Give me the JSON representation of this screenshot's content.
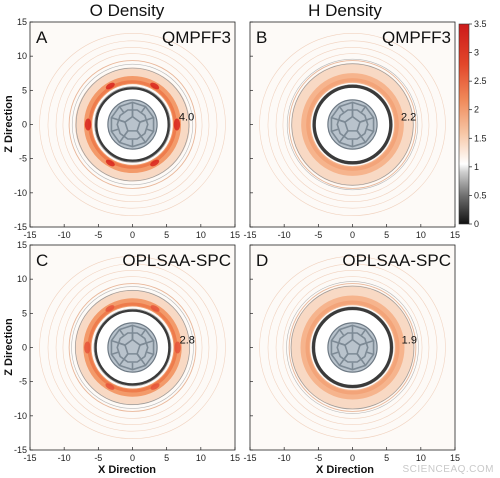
{
  "columns": [
    {
      "title": "O Density"
    },
    {
      "title": "H Density"
    }
  ],
  "panels": [
    {
      "letter": "A",
      "method": "QMPFF3",
      "peak_label": "4.0",
      "peak": 4.0,
      "shell_radius": 6.5,
      "inner_radius": 5.3
    },
    {
      "letter": "B",
      "method": "QMPFF3",
      "peak_label": "2.2",
      "peak": 2.2,
      "shell_radius": 6.8,
      "inner_radius": 5.6
    },
    {
      "letter": "C",
      "method": "OPLSAA-SPC",
      "peak_label": "2.8",
      "peak": 2.8,
      "shell_radius": 6.6,
      "inner_radius": 5.4
    },
    {
      "letter": "D",
      "method": "OPLSAA-SPC",
      "peak_label": "1.9",
      "peak": 1.9,
      "shell_radius": 6.9,
      "inner_radius": 5.7
    }
  ],
  "axes": {
    "xlabel": "X Direction",
    "ylabel": "Z Direction",
    "xlim": [
      -15,
      15
    ],
    "ylim": [
      -15,
      15
    ],
    "ticks": [
      -15,
      -10,
      -5,
      0,
      5,
      10,
      15
    ],
    "tick_labels": [
      "-15",
      "-10",
      "-5",
      "0",
      "5",
      "10",
      "15"
    ]
  },
  "colorbar": {
    "min": 0,
    "max": 3.5,
    "ticks": [
      0,
      0.5,
      1,
      1.5,
      2,
      2.5,
      3,
      3.5
    ],
    "tick_labels": [
      "0",
      "0.5",
      "1",
      "1.5",
      "2",
      "2.5",
      "3",
      "3.5"
    ],
    "colors": [
      "#111111",
      "#6e6e6e",
      "#cfcfcf",
      "#ffffff",
      "#f7c8a8",
      "#f08a5a",
      "#e2462a",
      "#cc1a1a"
    ]
  },
  "chart_data": {
    "type": "heatmap",
    "description_series": "radial water density around a fullerene",
    "panels": [
      {
        "letter": "A",
        "column": "O Density",
        "method": "QMPFF3",
        "peak_value": 4.0
      },
      {
        "letter": "B",
        "column": "H Density",
        "method": "QMPFF3",
        "peak_value": 2.2
      },
      {
        "letter": "C",
        "column": "O Density",
        "method": "OPLSAA-SPC",
        "peak_value": 2.8
      },
      {
        "letter": "D",
        "column": "H Density",
        "method": "OPLSAA-SPC",
        "peak_value": 1.9
      }
    ],
    "xlabel": "X Direction",
    "ylabel": "Z Direction",
    "xlim": [
      -15,
      15
    ],
    "ylim": [
      -15,
      15
    ],
    "colorbar_range": [
      0,
      3.5
    ]
  },
  "watermark": "SCIENCEAQ.COM"
}
